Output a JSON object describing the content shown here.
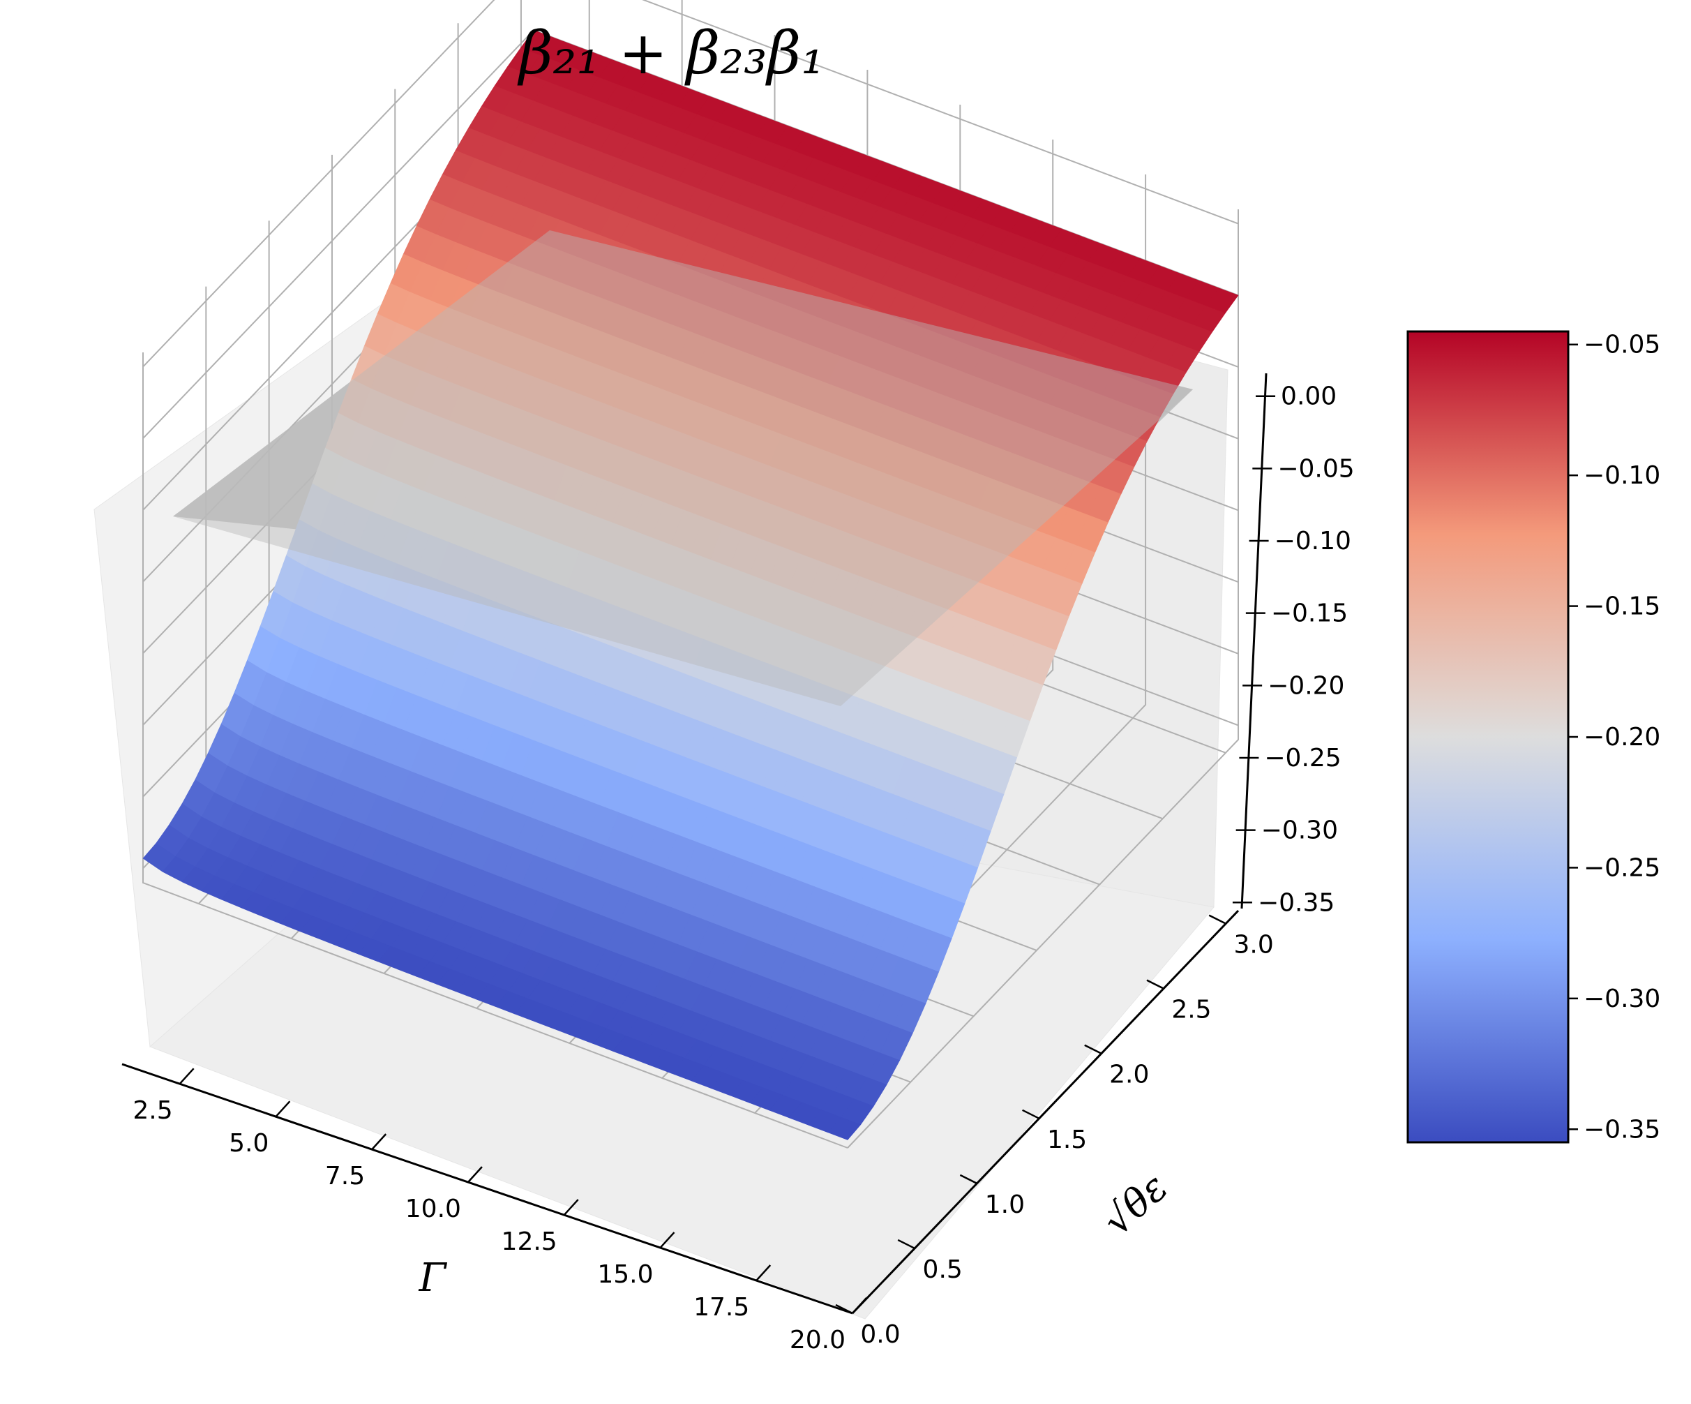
{
  "chart_data": {
    "type": "surface3d",
    "title": "β₂₁ + β₂₃β₁",
    "xlabel": "Γ",
    "ylabel": "√θε",
    "zlabel": "",
    "x_ticks": [
      "2.5",
      "5.0",
      "7.5",
      "10.0",
      "12.5",
      "15.0",
      "17.5",
      "20.0"
    ],
    "y_ticks": [
      "0.0",
      "0.5",
      "1.0",
      "1.5",
      "2.0",
      "2.5",
      "3.0"
    ],
    "z_ticks": [
      "0.00",
      "−0.05",
      "−0.10",
      "−0.15",
      "−0.20",
      "−0.25",
      "−0.30",
      "−0.35"
    ],
    "xlim": [
      1,
      20
    ],
    "ylim": [
      0,
      3.1
    ],
    "zlim": [
      -0.36,
      0.01
    ],
    "colorbar": {
      "ticks": [
        "−0.05",
        "−0.10",
        "−0.15",
        "−0.20",
        "−0.25",
        "−0.30",
        "−0.35"
      ],
      "range": [
        -0.355,
        -0.045
      ],
      "colormap": "coolwarm"
    },
    "reference_plane": {
      "z": 0.0,
      "color": "#bdbdbd"
    },
    "surface_corners": [
      {
        "x": 1,
        "y": 0,
        "z": -0.26
      },
      {
        "x": 20,
        "y": 0,
        "z": -0.355
      },
      {
        "x": 1,
        "y": 3.1,
        "z": -0.05
      },
      {
        "x": 20,
        "y": 3.1,
        "z": -0.05
      }
    ],
    "grid": true,
    "colors": {
      "cold": "#3b4cc0",
      "neutral": "#dddddd",
      "warm": "#b40426",
      "pane": "#f2f2f2",
      "grid": "#b0b0b0"
    }
  }
}
